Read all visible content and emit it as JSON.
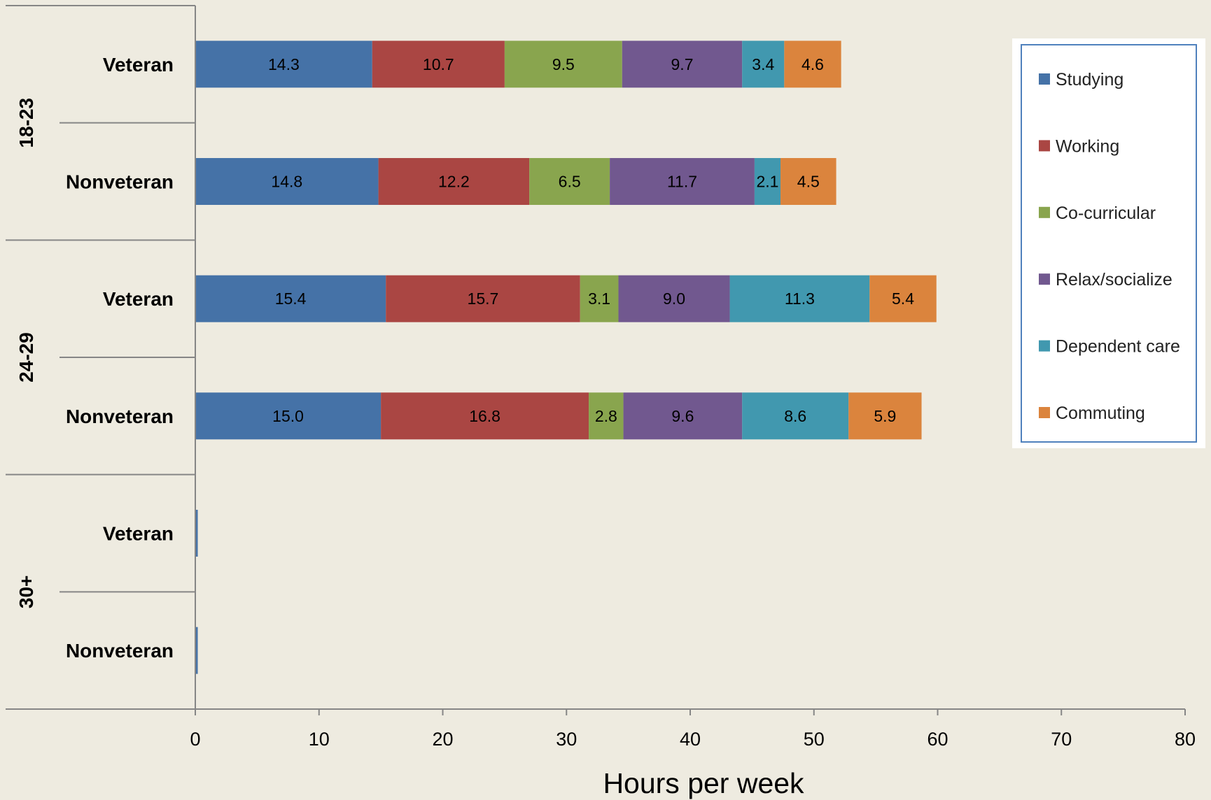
{
  "chart_data": {
    "type": "bar",
    "orientation": "horizontal",
    "stacked": true,
    "xlabel": "Hours per week",
    "xlim": [
      0,
      80
    ],
    "xticks": [
      0,
      10,
      20,
      30,
      40,
      50,
      60,
      70,
      80
    ],
    "groups": [
      {
        "label": "18-23",
        "rows": [
          "Veteran",
          "Nonveteran"
        ]
      },
      {
        "label": "24-29",
        "rows": [
          "Veteran",
          "Nonveteran"
        ]
      },
      {
        "label": "30+",
        "rows": [
          "Veteran",
          "Nonveteran"
        ]
      }
    ],
    "categories": [
      "18-23 Veteran",
      "18-23 Nonveteran",
      "24-29 Veteran",
      "24-29 Nonveteran",
      "30+ Veteran",
      "30+ Nonveteran"
    ],
    "series": [
      {
        "name": "Studying",
        "color": "#4572A7",
        "values": [
          14.3,
          14.8,
          15.4,
          15.0,
          0.2,
          0.2
        ]
      },
      {
        "name": "Working",
        "color": "#AA4643",
        "values": [
          10.7,
          12.2,
          15.7,
          16.8,
          0,
          0
        ]
      },
      {
        "name": "Co-curricular",
        "color": "#89A54E",
        "values": [
          9.5,
          6.5,
          3.1,
          2.8,
          0,
          0
        ]
      },
      {
        "name": "Relax/socialize",
        "color": "#71588F",
        "values": [
          9.7,
          11.7,
          9.0,
          9.6,
          0,
          0
        ]
      },
      {
        "name": "Dependent care",
        "color": "#4198AF",
        "values": [
          3.4,
          2.1,
          11.3,
          8.6,
          0,
          0
        ]
      },
      {
        "name": "Commuting",
        "color": "#DB843D",
        "values": [
          4.6,
          4.5,
          5.4,
          5.9,
          0,
          0
        ]
      }
    ],
    "data_labels": [
      [
        "14.3",
        "10.7",
        "9.5",
        "9.7",
        "3.4",
        "4.6"
      ],
      [
        "14.8",
        "12.2",
        "6.5",
        "11.7",
        "2.1",
        "4.5"
      ],
      [
        "15.4",
        "15.7",
        "3.1",
        "9.0",
        "11.3",
        "5.4"
      ],
      [
        "15.0",
        "16.8",
        "2.8",
        "9.6",
        "8.6",
        "5.9"
      ],
      [],
      []
    ],
    "legend": {
      "position": "right",
      "items": [
        "Studying",
        "Working",
        "Co-curricular",
        "Relax/socialize",
        "Dependent care",
        "Commuting"
      ]
    },
    "grid": false
  }
}
